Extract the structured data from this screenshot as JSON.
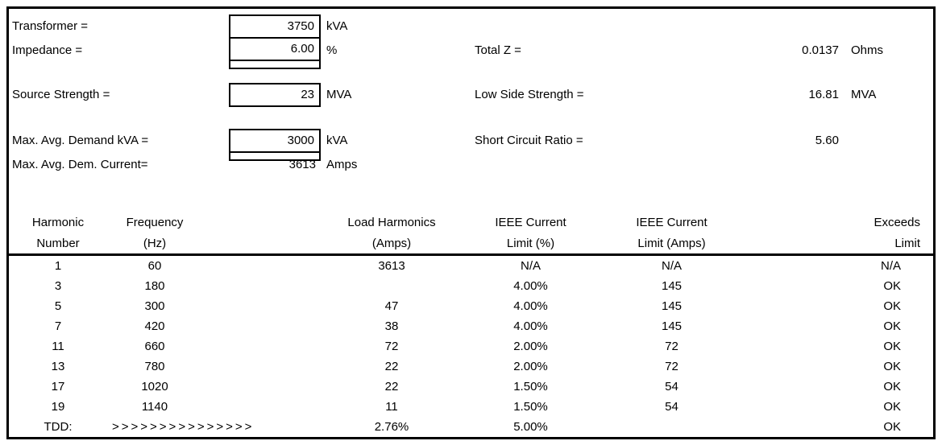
{
  "sheet": {
    "form": {
      "transformer": {
        "label": "Transformer =",
        "value": "3750",
        "unit": "kVA"
      },
      "impedance": {
        "label": "Impedance =",
        "value": "6.00",
        "unit": "%"
      },
      "source_strength": {
        "label": "Source Strength =",
        "value": "23",
        "unit": "MVA"
      },
      "max_avg_demand": {
        "label": "Max. Avg. Demand kVA =",
        "value": "3000",
        "unit": "kVA"
      },
      "max_avg_dem_current": {
        "label": "Max. Avg. Dem. Current=",
        "value": "3613",
        "unit": "Amps"
      },
      "total_z": {
        "label": "Total Z =",
        "value": "0.0137",
        "unit": "Ohms"
      },
      "low_side_strength": {
        "label": "Low Side Strength =",
        "value": "16.81",
        "unit": "MVA"
      },
      "short_circuit_ratio": {
        "label": "Short Circuit Ratio =",
        "value": "5.60"
      }
    },
    "table": {
      "headers": [
        [
          "Harmonic",
          "Number"
        ],
        [
          "Frequency",
          "(Hz)"
        ],
        [
          "Load Harmonics",
          "(Amps)"
        ],
        [
          "IEEE Current",
          "Limit (%)"
        ],
        [
          "IEEE Current",
          "Limit (Amps)"
        ],
        [
          "Exceeds",
          "Limit"
        ]
      ],
      "rows": [
        [
          "1",
          "60",
          "3613",
          "N/A",
          "N/A",
          "N/A"
        ],
        [
          "3",
          "180",
          "",
          "4.00%",
          "145",
          "OK"
        ],
        [
          "5",
          "300",
          "47",
          "4.00%",
          "145",
          "OK"
        ],
        [
          "7",
          "420",
          "38",
          "4.00%",
          "145",
          "OK"
        ],
        [
          "11",
          "660",
          "72",
          "2.00%",
          "72",
          "OK"
        ],
        [
          "13",
          "780",
          "22",
          "2.00%",
          "72",
          "OK"
        ],
        [
          "17",
          "1020",
          "22",
          "1.50%",
          "54",
          "OK"
        ],
        [
          "19",
          "1140",
          "11",
          "1.50%",
          "54",
          "OK"
        ]
      ],
      "tdd": {
        "label": "TDD:",
        "arrows": ">>>>>>>>>>>>>>>",
        "load_harmonics": "2.76%",
        "ieee_limit_pct": "5.00%",
        "ieee_limit_amps": "",
        "exceeds": "OK"
      }
    }
  }
}
